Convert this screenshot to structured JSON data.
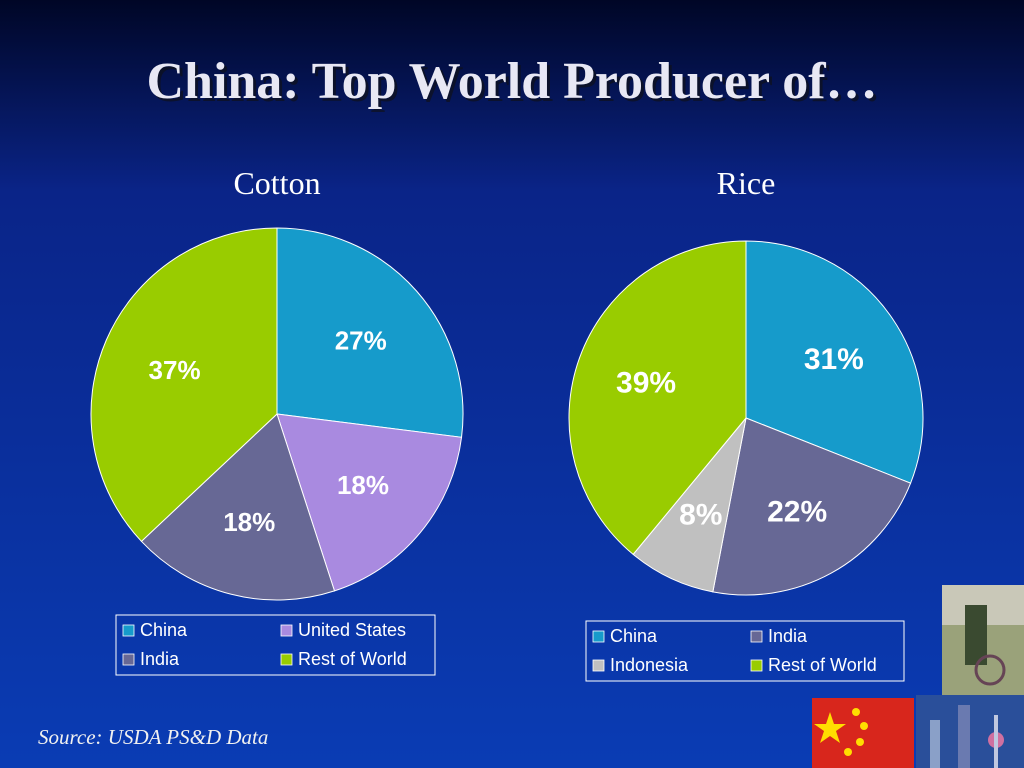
{
  "title": "China: Top World Producer of…",
  "source": "Source: USDA PS&D Data",
  "chart_data": [
    {
      "type": "pie",
      "title": "Cotton",
      "categories": [
        "China",
        "United States",
        "India",
        "Rest of World"
      ],
      "values": [
        27,
        18,
        18,
        37
      ],
      "value_labels": [
        "27%",
        "18%",
        "18%",
        "37%"
      ],
      "colors": [
        "#169bcb",
        "#a98ae0",
        "#676895",
        "#99cc00"
      ]
    },
    {
      "type": "pie",
      "title": "Rice",
      "categories": [
        "China",
        "India",
        "Indonesia",
        "Rest of World"
      ],
      "values": [
        31,
        22,
        8,
        39
      ],
      "value_labels": [
        "31%",
        "22%",
        "8%",
        "39%"
      ],
      "colors": [
        "#169bcb",
        "#676895",
        "#c0c0c0",
        "#99cc00"
      ]
    }
  ]
}
